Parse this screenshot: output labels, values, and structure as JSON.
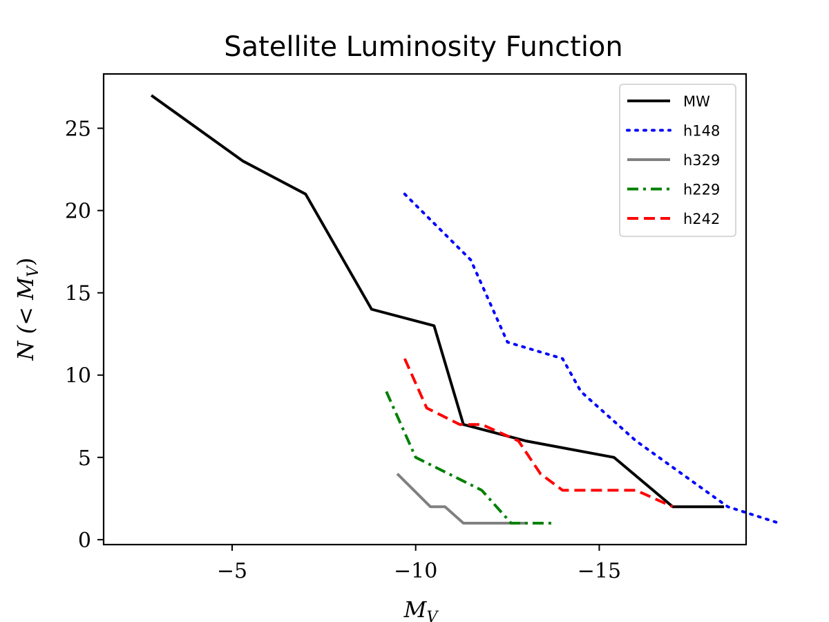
{
  "chart_data": {
    "type": "line",
    "title": "Satellite Luminosity Function",
    "xlabel": "M_V",
    "ylabel": "N (< M_V)",
    "xlim": [
      -1.5,
      -19
    ],
    "ylim": [
      -0.3,
      28.3
    ],
    "x_ticks": [
      -5,
      -10,
      -15
    ],
    "x_tick_labels": [
      "−5",
      "−10",
      "−15"
    ],
    "y_ticks": [
      0,
      5,
      10,
      15,
      20,
      25
    ],
    "y_tick_labels": [
      "0",
      "5",
      "10",
      "15",
      "20",
      "25"
    ],
    "grid": false,
    "legend_position": "top-right",
    "series": [
      {
        "name": "MW",
        "color": "#000000",
        "dash": "solid",
        "x": [
          -2.8,
          -5.3,
          -7.0,
          -8.8,
          -10.5,
          -11.3,
          -13.0,
          -15.4,
          -17.0,
          -18.4
        ],
        "y": [
          27,
          23,
          21,
          14,
          13,
          7,
          6,
          5,
          2,
          2
        ]
      },
      {
        "name": "h148",
        "color": "#0000ff",
        "dash": "dotted",
        "x": [
          -9.7,
          -11.5,
          -12.5,
          -14.0,
          -14.5,
          -16.0,
          -18.5,
          -19.9
        ],
        "y": [
          21,
          17,
          12,
          11,
          9,
          6,
          2,
          1
        ]
      },
      {
        "name": "h329",
        "color": "#808080",
        "dash": "solid",
        "x": [
          -9.5,
          -10.4,
          -10.8,
          -11.3,
          -13.0
        ],
        "y": [
          4,
          2,
          2,
          1,
          1
        ]
      },
      {
        "name": "h229",
        "color": "#008000",
        "dash": "dashdot",
        "x": [
          -9.2,
          -10.0,
          -11.8,
          -12.6,
          -13.8
        ],
        "y": [
          9,
          5,
          3,
          1,
          1
        ]
      },
      {
        "name": "h242",
        "color": "#ff0000",
        "dash": "dashed",
        "x": [
          -9.7,
          -10.3,
          -11.2,
          -11.8,
          -12.8,
          -13.4,
          -14.0,
          -16.0,
          -17.0
        ],
        "y": [
          11,
          8,
          7,
          7,
          6,
          4,
          3,
          3,
          2
        ]
      }
    ]
  }
}
